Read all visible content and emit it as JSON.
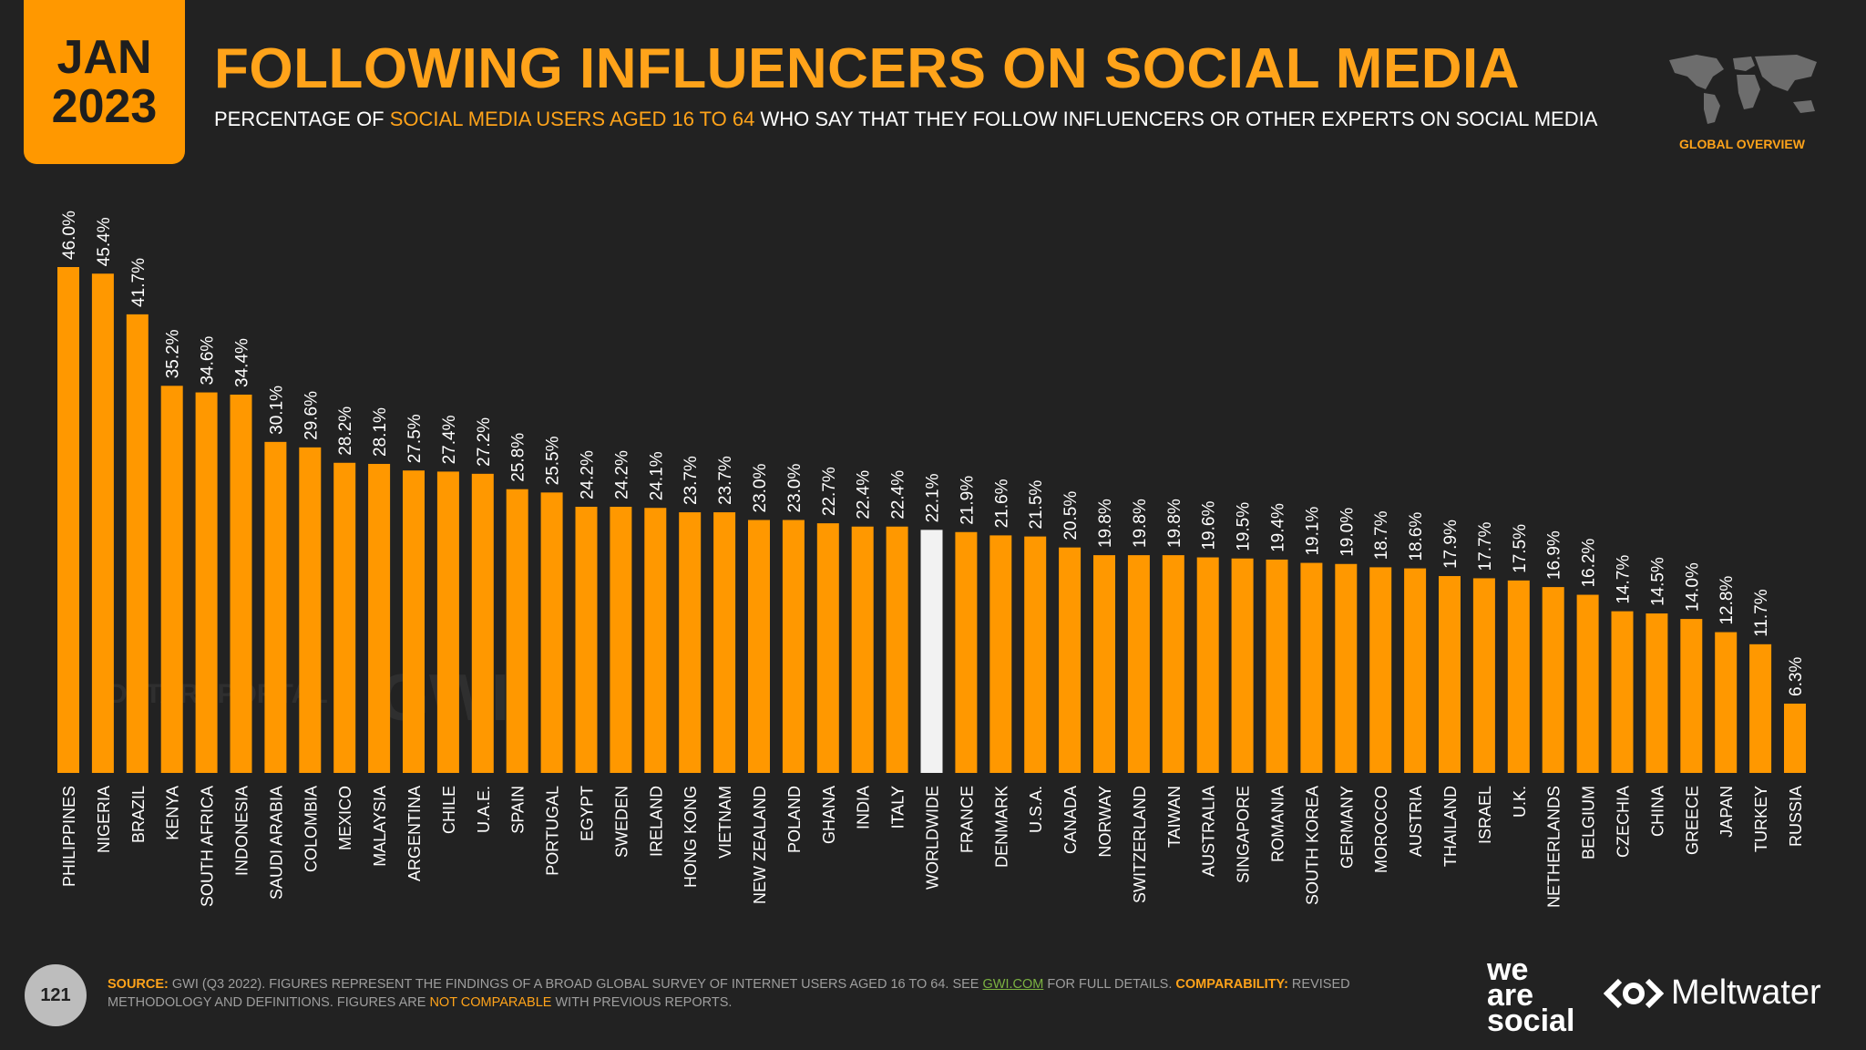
{
  "header": {
    "date_month": "JAN",
    "date_year": "2023",
    "title": "FOLLOWING INFLUENCERS ON SOCIAL MEDIA",
    "subtitle_pre": "PERCENTAGE OF ",
    "subtitle_highlight": "SOCIAL MEDIA USERS AGED 16 TO 64",
    "subtitle_post": " WHO SAY THAT THEY FOLLOW INFLUENCERS OR OTHER EXPERTS ON SOCIAL MEDIA",
    "map_icon": "world-map-icon",
    "overview_label": "GLOBAL OVERVIEW"
  },
  "colors": {
    "accent": "#FF9800",
    "highlight_bar": "#F2F2F2",
    "background": "#222222"
  },
  "watermarks": {
    "datareportal": "DATAREPORTAL",
    "gwi": "GWI."
  },
  "chart_data": {
    "type": "bar",
    "categories": [
      "PHILIPPINES",
      "NIGERIA",
      "BRAZIL",
      "KENYA",
      "SOUTH AFRICA",
      "INDONESIA",
      "SAUDI ARABIA",
      "COLOMBIA",
      "MEXICO",
      "MALAYSIA",
      "ARGENTINA",
      "CHILE",
      "U.A.E.",
      "SPAIN",
      "PORTUGAL",
      "EGYPT",
      "SWEDEN",
      "IRELAND",
      "HONG KONG",
      "VIETNAM",
      "NEW ZEALAND",
      "POLAND",
      "GHANA",
      "INDIA",
      "ITALY",
      "WORLDWIDE",
      "FRANCE",
      "DENMARK",
      "U.S.A.",
      "CANADA",
      "NORWAY",
      "SWITZERLAND",
      "TAIWAN",
      "AUSTRALIA",
      "SINGAPORE",
      "ROMANIA",
      "SOUTH KOREA",
      "GERMANY",
      "MOROCCO",
      "AUSTRIA",
      "THAILAND",
      "ISRAEL",
      "U.K.",
      "NETHERLANDS",
      "BELGIUM",
      "CZECHIA",
      "CHINA",
      "GREECE",
      "JAPAN",
      "TURKEY",
      "RUSSIA"
    ],
    "values": [
      46.0,
      45.4,
      41.7,
      35.2,
      34.6,
      34.4,
      30.1,
      29.6,
      28.2,
      28.1,
      27.5,
      27.4,
      27.2,
      25.8,
      25.5,
      24.2,
      24.2,
      24.1,
      23.7,
      23.7,
      23.0,
      23.0,
      22.7,
      22.4,
      22.4,
      22.1,
      21.9,
      21.6,
      21.5,
      20.5,
      19.8,
      19.8,
      19.8,
      19.6,
      19.5,
      19.4,
      19.1,
      19.0,
      18.7,
      18.6,
      17.9,
      17.7,
      17.5,
      16.9,
      16.2,
      14.7,
      14.5,
      14.0,
      12.8,
      11.7,
      6.3
    ],
    "labels": [
      "46.0%",
      "45.4%",
      "41.7%",
      "35.2%",
      "34.6%",
      "34.4%",
      "30.1%",
      "29.6%",
      "28.2%",
      "28.1%",
      "27.5%",
      "27.4%",
      "27.2%",
      "25.8%",
      "25.5%",
      "24.2%",
      "24.2%",
      "24.1%",
      "23.7%",
      "23.7%",
      "23.0%",
      "23.0%",
      "22.7%",
      "22.4%",
      "22.4%",
      "22.1%",
      "21.9%",
      "21.6%",
      "21.5%",
      "20.5%",
      "19.8%",
      "19.8%",
      "19.8%",
      "19.6%",
      "19.5%",
      "19.4%",
      "19.1%",
      "19.0%",
      "18.7%",
      "18.6%",
      "17.9%",
      "17.7%",
      "17.5%",
      "16.9%",
      "16.2%",
      "14.7%",
      "14.5%",
      "14.0%",
      "12.8%",
      "11.7%",
      "6.3%"
    ],
    "highlight_category": "WORLDWIDE",
    "ylim": [
      0,
      46.0
    ],
    "grid": false
  },
  "footer": {
    "page_number": "121",
    "source_label": "SOURCE:",
    "source_text": " GWI (Q3 2022). FIGURES REPRESENT THE FINDINGS OF A BROAD GLOBAL SURVEY OF INTERNET USERS AGED 16 TO 64. SEE ",
    "source_link": "GWI.COM",
    "source_text2": " FOR FULL DETAILS. ",
    "comparability_label": "COMPARABILITY:",
    "comparability_text": " REVISED METHODOLOGY AND DEFINITIONS. FIGURES ARE ",
    "not_comparable": "NOT COMPARABLE",
    "comparability_text2": " WITH PREVIOUS REPORTS."
  },
  "branding": {
    "was_line1": "we",
    "was_line2": "are",
    "was_line3": "social",
    "meltwater": "Meltwater"
  }
}
